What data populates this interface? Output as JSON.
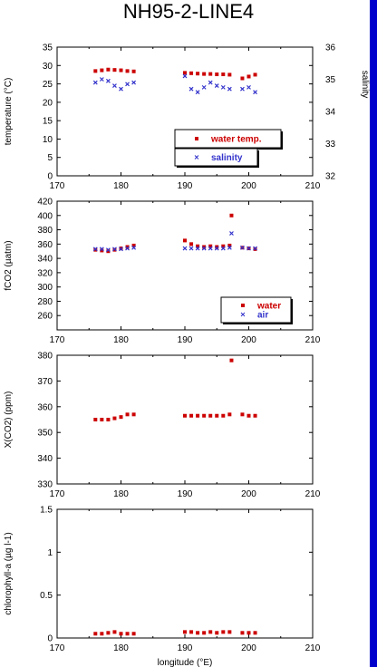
{
  "page_title": "NH95-2-LINE4",
  "colors": {
    "water": "#cc0000",
    "air": "#3333cc",
    "salinity": "#3333cc",
    "accent_bar": "#0000cc"
  },
  "chart_data": [
    {
      "type": "scatter",
      "title": "NH95-2-LINE4",
      "ylabel": "temperature (°C)",
      "y2label": "salinity",
      "xlim": [
        170,
        210
      ],
      "ylim": [
        0,
        35
      ],
      "y2lim": [
        32,
        36
      ],
      "xticks": [
        "170",
        "180",
        "190",
        "200",
        "210"
      ],
      "yticks": [
        "0",
        "5",
        "10",
        "15",
        "20",
        "25",
        "30",
        "35"
      ],
      "y2ticks": [
        "32",
        "33",
        "34",
        "35",
        "36"
      ],
      "legend": [
        "water temp.",
        "salinity"
      ],
      "legend_position": "bottom-right",
      "series": [
        {
          "name": "water temp.",
          "axis": "left",
          "marker": "square",
          "x": [
            176,
            177,
            178,
            179,
            180,
            181,
            182,
            190,
            191,
            192,
            193,
            194,
            195,
            196,
            197,
            199,
            200,
            201
          ],
          "y": [
            28.5,
            28.7,
            28.9,
            28.8,
            28.7,
            28.5,
            28.4,
            28.0,
            27.9,
            27.8,
            27.7,
            27.7,
            27.6,
            27.6,
            27.5,
            26.5,
            27.0,
            27.5
          ]
        },
        {
          "name": "salinity",
          "axis": "right",
          "marker": "x",
          "x": [
            176,
            177,
            178,
            179,
            180,
            181,
            182,
            190,
            191,
            192,
            193,
            194,
            195,
            196,
            197,
            199,
            200,
            201
          ],
          "y": [
            34.9,
            35.0,
            34.95,
            34.8,
            34.7,
            34.85,
            34.9,
            35.1,
            34.7,
            34.6,
            34.75,
            34.9,
            34.8,
            34.75,
            34.7,
            34.7,
            34.75,
            34.6
          ]
        }
      ]
    },
    {
      "type": "scatter",
      "ylabel": "fCO2 (µatm)",
      "xlim": [
        170,
        210
      ],
      "ylim": [
        240,
        420
      ],
      "xticks": [
        "170",
        "180",
        "190",
        "200",
        "210"
      ],
      "yticks": [
        "260",
        "280",
        "300",
        "320",
        "340",
        "360",
        "380",
        "400",
        "420"
      ],
      "legend": [
        "water",
        "air"
      ],
      "legend_position": "bottom-right",
      "series": [
        {
          "name": "water",
          "marker": "square",
          "x": [
            176,
            177,
            178,
            179,
            180,
            181,
            182,
            190,
            191,
            192,
            193,
            194,
            195,
            196,
            197,
            197.3,
            199,
            200,
            201
          ],
          "y": [
            352,
            351,
            350,
            352,
            354,
            356,
            358,
            365,
            360,
            357,
            356,
            357,
            356,
            357,
            358,
            400,
            355,
            354,
            353
          ]
        },
        {
          "name": "air",
          "marker": "x",
          "x": [
            176,
            177,
            178,
            179,
            180,
            181,
            182,
            190,
            191,
            192,
            193,
            194,
            195,
            196,
            197,
            197.3,
            199,
            200,
            201
          ],
          "y": [
            353,
            353,
            352,
            353,
            353,
            354,
            355,
            354,
            354,
            354,
            354,
            354,
            354,
            354,
            355,
            375,
            355,
            354,
            354
          ]
        }
      ]
    },
    {
      "type": "scatter",
      "ylabel": "X(CO2) (ppm)",
      "xlim": [
        170,
        210
      ],
      "ylim": [
        330,
        380
      ],
      "xticks": [
        "170",
        "180",
        "190",
        "200",
        "210"
      ],
      "yticks": [
        "330",
        "340",
        "350",
        "360",
        "370",
        "380"
      ],
      "series": [
        {
          "name": "",
          "marker": "square",
          "x": [
            176,
            177,
            178,
            179,
            180,
            181,
            182,
            190,
            191,
            192,
            193,
            194,
            195,
            196,
            197,
            197.3,
            199,
            200,
            201
          ],
          "y": [
            355,
            355,
            355,
            355.5,
            356,
            357,
            357,
            356.5,
            356.5,
            356.5,
            356.5,
            356.5,
            356.5,
            356.5,
            357,
            378,
            357,
            356.5,
            356.5
          ]
        }
      ]
    },
    {
      "type": "scatter",
      "ylabel": "chlorophyll-a (µg l-1)",
      "xlabel": "longitude (°E)",
      "xlim": [
        170,
        210
      ],
      "ylim": [
        0,
        1.5
      ],
      "xticks": [
        "170",
        "180",
        "190",
        "200",
        "210"
      ],
      "yticks": [
        "0",
        "0.5",
        "1",
        "1.5"
      ],
      "series": [
        {
          "name": "",
          "marker": "square",
          "x": [
            176,
            177,
            178,
            179,
            180,
            181,
            182,
            190,
            191,
            192,
            193,
            194,
            195,
            196,
            197,
            199,
            200,
            201
          ],
          "y": [
            0.05,
            0.05,
            0.06,
            0.07,
            0.05,
            0.05,
            0.05,
            0.07,
            0.07,
            0.06,
            0.06,
            0.07,
            0.06,
            0.07,
            0.07,
            0.06,
            0.06,
            0.06
          ]
        }
      ]
    }
  ]
}
